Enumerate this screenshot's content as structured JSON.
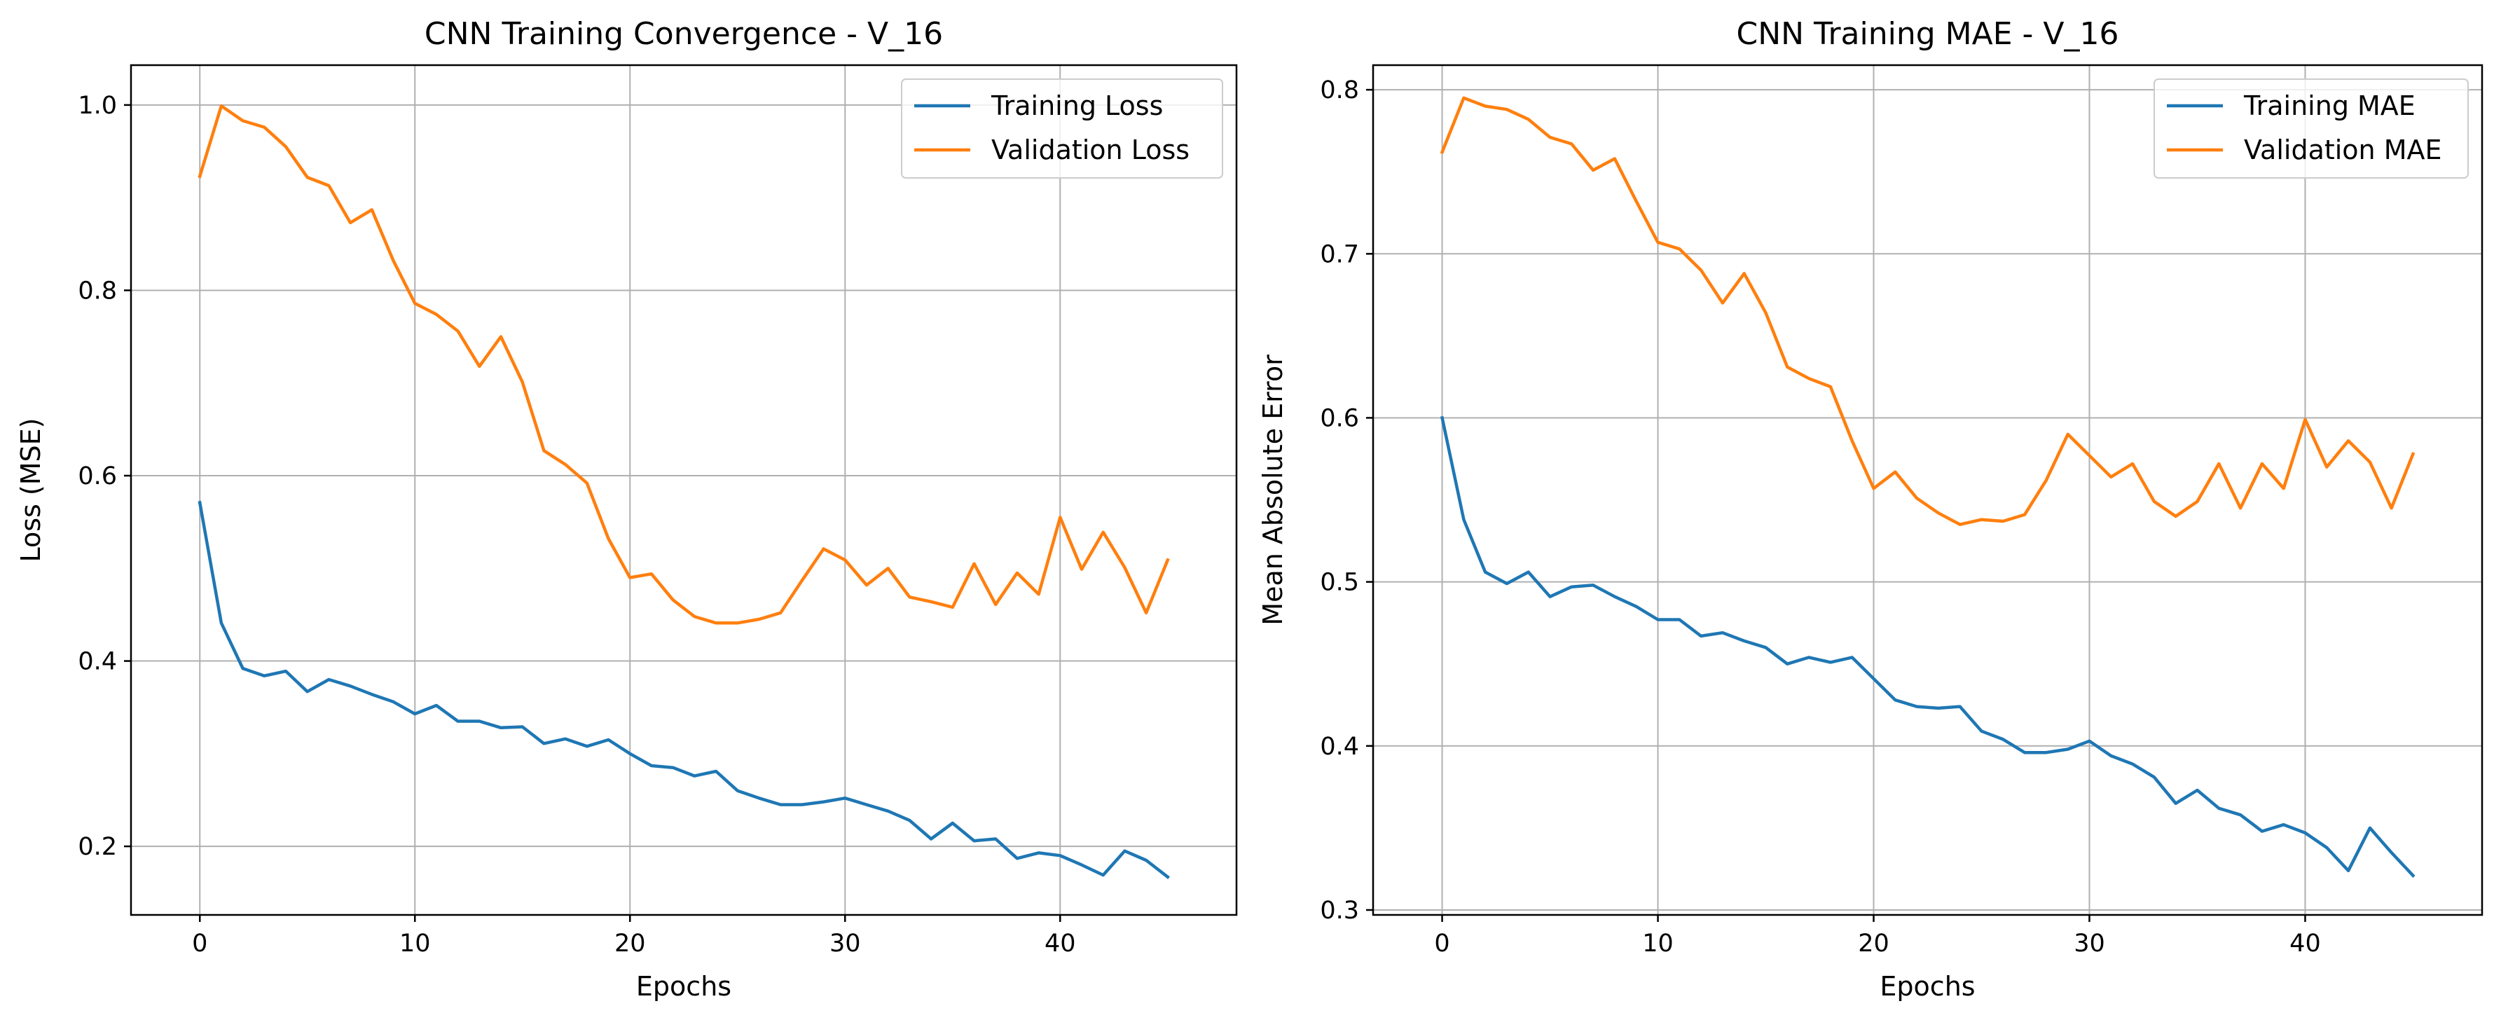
{
  "chart_data": [
    {
      "type": "line",
      "title": "CNN Training Convergence - V_16",
      "xlabel": "Epochs",
      "ylabel": "Loss (MSE)",
      "xlim": [
        -3.2,
        48.2
      ],
      "ylim": [
        0.126,
        1.043
      ],
      "xticks": [
        0,
        10,
        20,
        30,
        40
      ],
      "yticks": [
        0.2,
        0.4,
        0.6,
        0.8,
        1.0
      ],
      "ytick_labels": [
        "0.2",
        "0.4",
        "0.6",
        "0.8",
        "1.0"
      ],
      "grid": true,
      "legend_position": "top-right",
      "x": [
        0,
        1,
        2,
        3,
        4,
        5,
        6,
        7,
        8,
        9,
        10,
        11,
        12,
        13,
        14,
        15,
        16,
        17,
        18,
        19,
        20,
        21,
        22,
        23,
        24,
        25,
        26,
        27,
        28,
        29,
        30,
        31,
        32,
        33,
        34,
        35,
        36,
        37,
        38,
        39,
        40,
        41,
        42,
        43,
        44,
        45
      ],
      "series": [
        {
          "name": "Training Loss",
          "color": "#1f77b4",
          "values": [
            0.571,
            0.441,
            0.392,
            0.384,
            0.389,
            0.367,
            0.38,
            0.373,
            0.364,
            0.356,
            0.343,
            0.352,
            0.335,
            0.335,
            0.328,
            0.329,
            0.311,
            0.316,
            0.308,
            0.315,
            0.3,
            0.287,
            0.285,
            0.276,
            0.281,
            0.26,
            0.252,
            0.245,
            0.245,
            0.248,
            0.252,
            0.245,
            0.238,
            0.228,
            0.208,
            0.225,
            0.206,
            0.208,
            0.187,
            0.193,
            0.19,
            0.18,
            0.169,
            0.195,
            0.185,
            0.167
          ]
        },
        {
          "name": "Validation Loss",
          "color": "#ff7f0e",
          "values": [
            0.923,
            0.999,
            0.983,
            0.976,
            0.955,
            0.922,
            0.913,
            0.873,
            0.887,
            0.832,
            0.786,
            0.774,
            0.756,
            0.718,
            0.75,
            0.701,
            0.627,
            0.612,
            0.592,
            0.532,
            0.49,
            0.494,
            0.466,
            0.448,
            0.441,
            0.441,
            0.445,
            0.452,
            0.487,
            0.521,
            0.509,
            0.482,
            0.5,
            0.469,
            0.464,
            0.458,
            0.505,
            0.461,
            0.495,
            0.472,
            0.555,
            0.499,
            0.539,
            0.501,
            0.452,
            0.509
          ]
        }
      ]
    },
    {
      "type": "line",
      "title": "CNN Training MAE - V_16",
      "xlabel": "Epochs",
      "ylabel": "Mean Absolute Error",
      "xlim": [
        -3.2,
        48.2
      ],
      "ylim": [
        0.297,
        0.815
      ],
      "xticks": [
        0,
        10,
        20,
        30,
        40
      ],
      "yticks": [
        0.3,
        0.4,
        0.5,
        0.6,
        0.7,
        0.8
      ],
      "ytick_labels": [
        "0.3",
        "0.4",
        "0.5",
        "0.6",
        "0.7",
        "0.8"
      ],
      "grid": true,
      "legend_position": "top-right",
      "x": [
        0,
        1,
        2,
        3,
        4,
        5,
        6,
        7,
        8,
        9,
        10,
        11,
        12,
        13,
        14,
        15,
        16,
        17,
        18,
        19,
        20,
        21,
        22,
        23,
        24,
        25,
        26,
        27,
        28,
        29,
        30,
        31,
        32,
        33,
        34,
        35,
        36,
        37,
        38,
        39,
        40,
        41,
        42,
        43,
        44,
        45
      ],
      "series": [
        {
          "name": "Training MAE",
          "color": "#1f77b4",
          "values": [
            0.6,
            0.538,
            0.506,
            0.499,
            0.506,
            0.491,
            0.497,
            0.498,
            0.491,
            0.485,
            0.477,
            0.477,
            0.467,
            0.469,
            0.464,
            0.46,
            0.45,
            0.454,
            0.451,
            0.454,
            0.441,
            0.428,
            0.424,
            0.423,
            0.424,
            0.409,
            0.404,
            0.396,
            0.396,
            0.398,
            0.403,
            0.394,
            0.389,
            0.381,
            0.365,
            0.373,
            0.362,
            0.358,
            0.348,
            0.352,
            0.347,
            0.338,
            0.324,
            0.35,
            0.335,
            0.321
          ]
        },
        {
          "name": "Validation MAE",
          "color": "#ff7f0e",
          "values": [
            0.762,
            0.795,
            0.79,
            0.788,
            0.782,
            0.771,
            0.767,
            0.751,
            0.758,
            0.732,
            0.707,
            0.703,
            0.69,
            0.67,
            0.688,
            0.664,
            0.631,
            0.624,
            0.619,
            0.586,
            0.557,
            0.567,
            0.551,
            0.542,
            0.535,
            0.538,
            0.537,
            0.541,
            0.562,
            0.59,
            0.577,
            0.564,
            0.572,
            0.549,
            0.54,
            0.549,
            0.572,
            0.545,
            0.572,
            0.557,
            0.599,
            0.57,
            0.586,
            0.573,
            0.545,
            0.578
          ]
        }
      ]
    }
  ]
}
